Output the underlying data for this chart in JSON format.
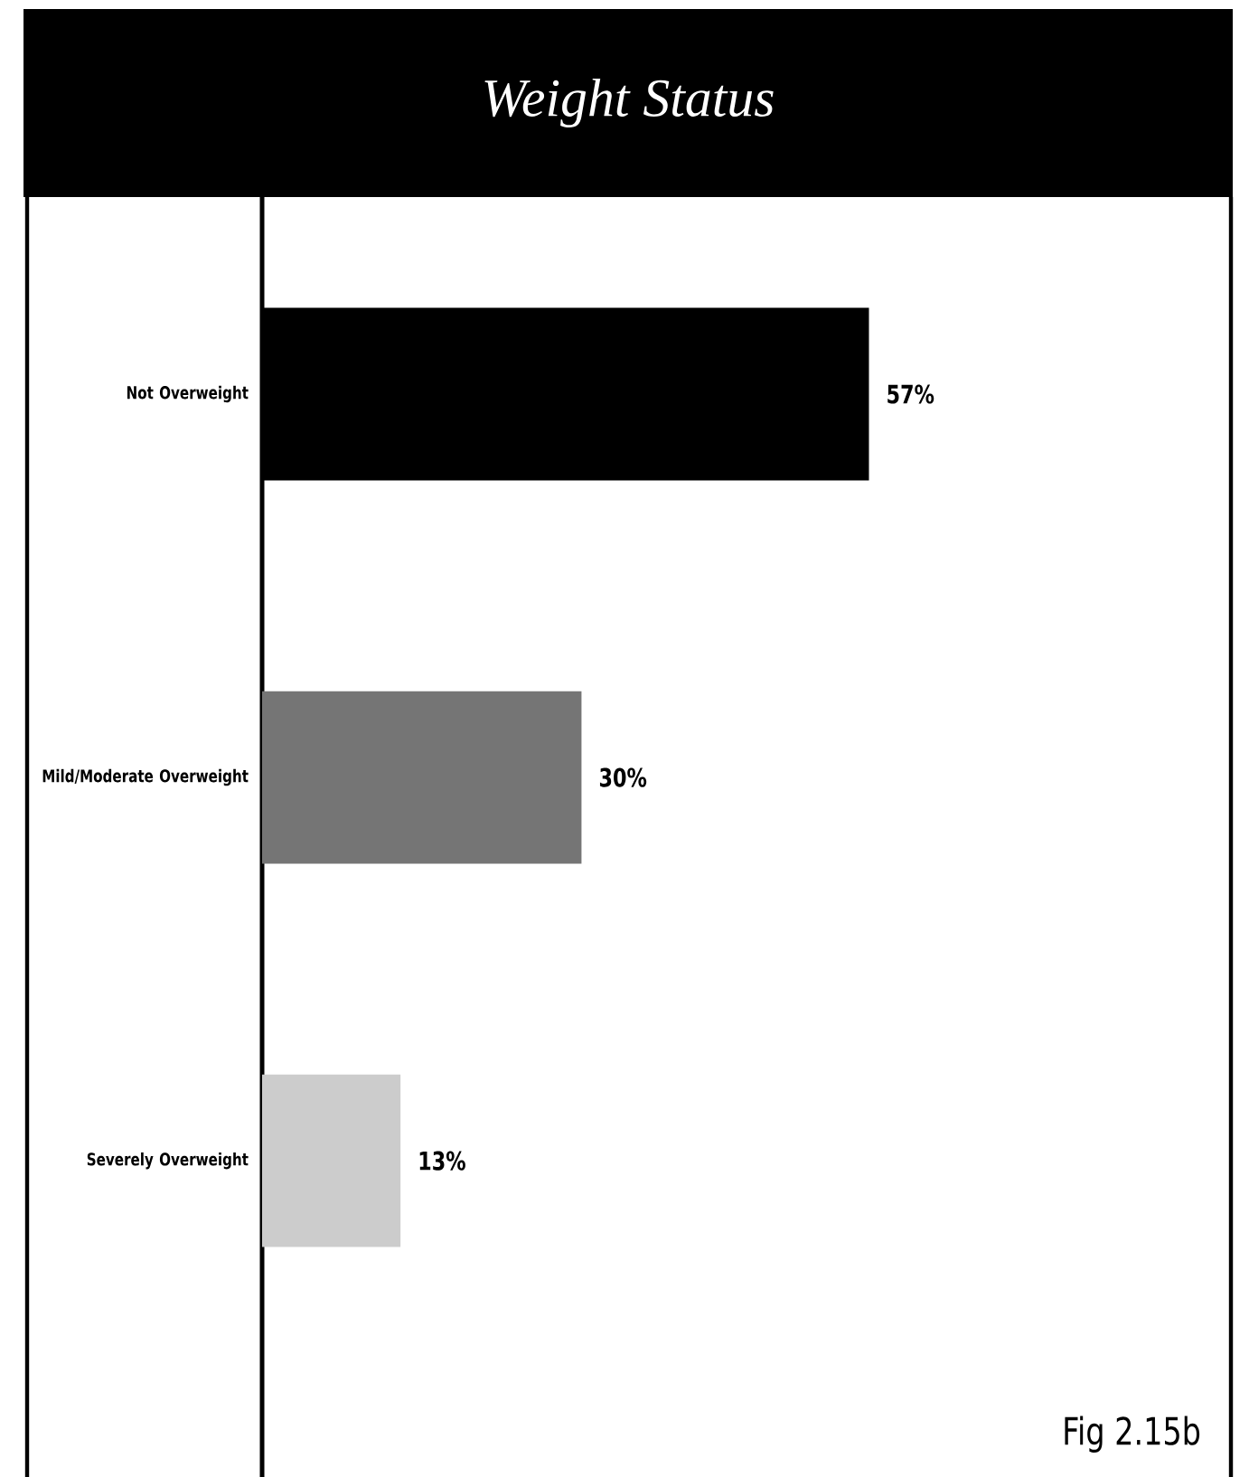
{
  "chart_data": {
    "type": "bar",
    "orientation": "horizontal",
    "title": "Weight Status",
    "categories": [
      "Not Overweight",
      "Mild/Moderate Overweight",
      "Severely Overweight"
    ],
    "values": [
      57,
      30,
      13
    ],
    "colors": [
      "#000000",
      "#757575",
      "#cccccc"
    ],
    "value_labels": [
      "57%",
      "30%",
      "13%"
    ],
    "xlim": [
      0,
      91
    ],
    "tick_labels": "y",
    "annotations": [
      "Fig 2.15b"
    ]
  }
}
